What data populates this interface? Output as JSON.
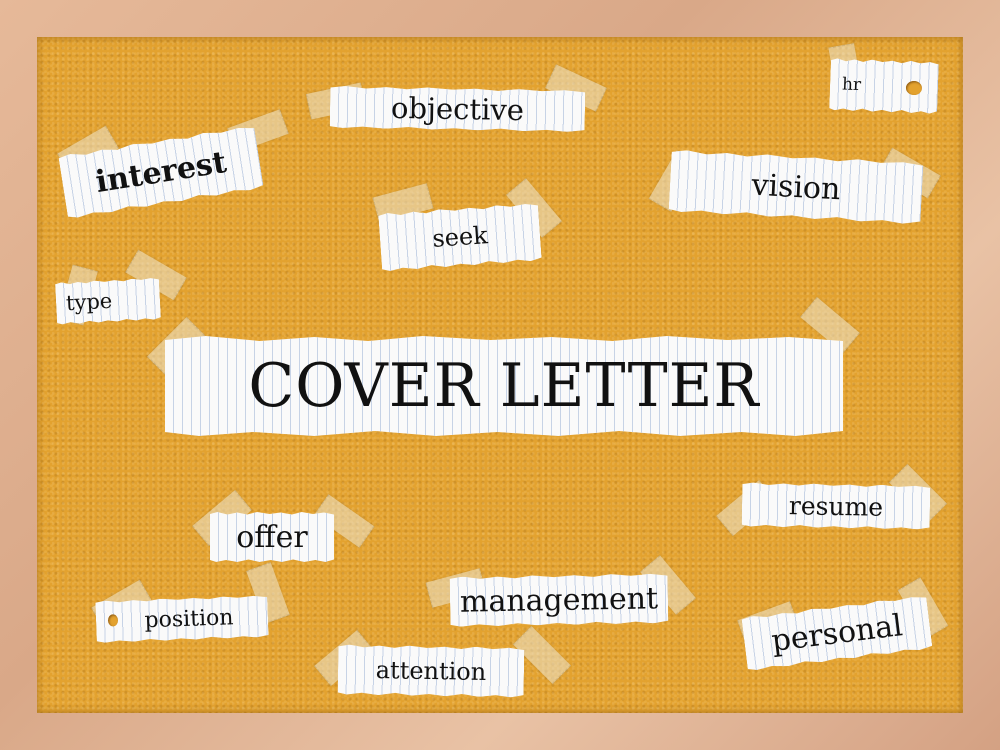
{
  "words": {
    "title": "COVER LETTER",
    "objective": "objective",
    "hr": "hr",
    "interest": "interest",
    "vision": "vision",
    "seek": "seek",
    "type": "type",
    "resume": "resume",
    "offer": "offer",
    "management": "management",
    "position": "position",
    "personal": "personal",
    "attention": "attention"
  }
}
